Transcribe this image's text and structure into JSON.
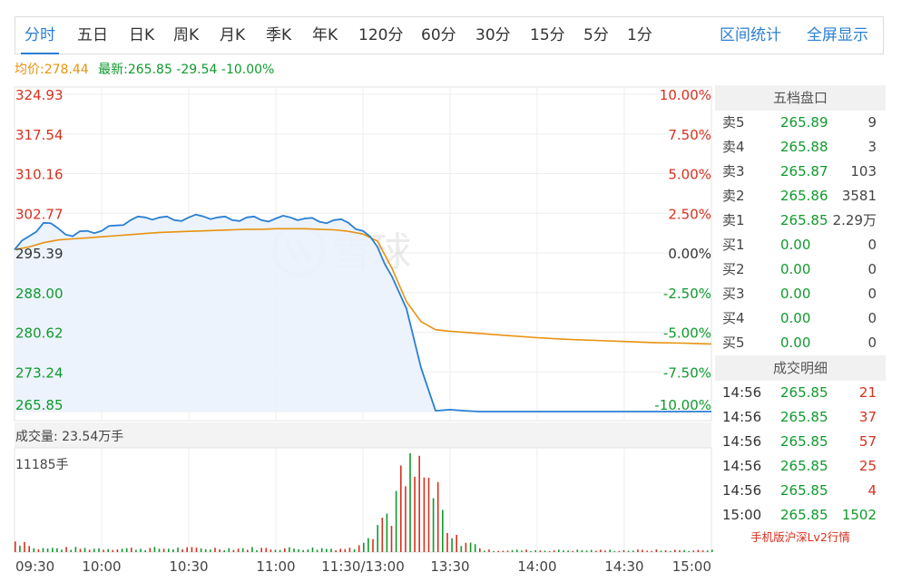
{
  "tabs": {
    "items": [
      "分时",
      "五日",
      "日K",
      "周K",
      "月K",
      "季K",
      "年K",
      "120分",
      "60分",
      "30分",
      "15分",
      "5分",
      "1分"
    ],
    "active": "分时",
    "interval_stats": "区间统计",
    "fullscreen": "全屏显示"
  },
  "price_bar": {
    "avg": "均价:278.44",
    "latest": "最新:265.85 -29.54 -10.00%"
  },
  "chart": {
    "left_ticks": [
      "324.93",
      "317.54",
      "310.16",
      "302.77",
      "295.39",
      "288.00",
      "280.62",
      "273.24",
      "265.85"
    ],
    "right_ticks": [
      "10.00%",
      "7.50%",
      "5.00%",
      "2.50%",
      "0.00%",
      "-2.50%",
      "-5.00%",
      "-7.50%",
      "-10.00%"
    ],
    "volume_label": "成交量: 23.54万手",
    "volume_axis_max": "11185手",
    "time_ticks": [
      "09:30",
      "10:00",
      "10:30",
      "11:00",
      "11:30/13:00",
      "13:30",
      "14:00",
      "14:30",
      "15:00"
    ],
    "watermark": "雪球",
    "colors": {
      "price_line": "#2a7fd4",
      "avg_line": "#e8920f",
      "up": "#d8301e",
      "down": "#109a2e",
      "area": "#eaf2fc"
    }
  },
  "chart_data": {
    "type": "line",
    "title": "",
    "x_unit": "minutes since 09:30 (trading minutes)",
    "x": [
      0,
      5,
      10,
      15,
      20,
      25,
      30,
      35,
      40,
      45,
      50,
      55,
      60,
      65,
      70,
      75,
      80,
      85,
      90,
      95,
      100,
      105,
      110,
      115,
      120,
      125,
      130,
      135,
      140,
      145,
      150,
      155,
      160,
      170,
      180,
      190,
      200,
      210,
      220,
      230,
      240
    ],
    "series": [
      {
        "values": [
          296.0,
          298.5,
          301.0,
          300.0,
          298.5,
          299.5,
          299.5,
          300.5,
          301.5,
          302.0,
          302.0,
          301.5,
          302.0,
          302.2,
          302.0,
          301.5,
          302.0,
          301.5,
          301.8,
          302.0,
          301.8,
          301.2,
          301.5,
          301.0,
          299.5,
          296.5,
          291.0,
          285.0,
          274.0,
          266.0,
          266.2,
          266.0,
          265.85,
          265.85,
          265.85,
          265.85,
          265.85,
          265.85,
          265.85,
          265.85,
          265.85
        ]
      },
      {
        "values": [
          296.0,
          296.5,
          297.3,
          297.8,
          298.0,
          298.2,
          298.4,
          298.6,
          298.8,
          299.0,
          299.2,
          299.3,
          299.4,
          299.5,
          299.6,
          299.7,
          299.8,
          299.8,
          299.9,
          299.9,
          299.9,
          299.8,
          299.7,
          299.4,
          298.9,
          297.6,
          292.5,
          286.3,
          282.6,
          281.1,
          280.8,
          280.6,
          280.4,
          280.0,
          279.6,
          279.3,
          279.1,
          278.9,
          278.7,
          278.6,
          278.44
        ]
      }
    ],
    "ylim": [
      265.85,
      324.93
    ],
    "y2lim": [
      -10.0,
      10.0
    ],
    "reference": 295.39,
    "volume_max": 11185
  },
  "order_book": {
    "title": "五档盘口",
    "asks": [
      {
        "label": "卖5",
        "price": "265.89",
        "vol": "9"
      },
      {
        "label": "卖4",
        "price": "265.88",
        "vol": "3"
      },
      {
        "label": "卖3",
        "price": "265.87",
        "vol": "103"
      },
      {
        "label": "卖2",
        "price": "265.86",
        "vol": "3581"
      },
      {
        "label": "卖1",
        "price": "265.85",
        "vol": "2.29万"
      }
    ],
    "bids": [
      {
        "label": "买1",
        "price": "0.00",
        "vol": "0"
      },
      {
        "label": "买2",
        "price": "0.00",
        "vol": "0"
      },
      {
        "label": "买3",
        "price": "0.00",
        "vol": "0"
      },
      {
        "label": "买4",
        "price": "0.00",
        "vol": "0"
      },
      {
        "label": "买5",
        "price": "0.00",
        "vol": "0"
      }
    ]
  },
  "trades": {
    "title": "成交明细",
    "items": [
      {
        "time": "14:56",
        "price": "265.85",
        "vol": "21",
        "color": "red"
      },
      {
        "time": "14:56",
        "price": "265.85",
        "vol": "37",
        "color": "red"
      },
      {
        "time": "14:56",
        "price": "265.85",
        "vol": "57",
        "color": "red"
      },
      {
        "time": "14:56",
        "price": "265.85",
        "vol": "25",
        "color": "red"
      },
      {
        "time": "14:56",
        "price": "265.85",
        "vol": "4",
        "color": "red"
      },
      {
        "time": "15:00",
        "price": "265.85",
        "vol": "1502",
        "color": "green"
      }
    ],
    "lv2_link": "手机版沪深Lv2行情"
  }
}
